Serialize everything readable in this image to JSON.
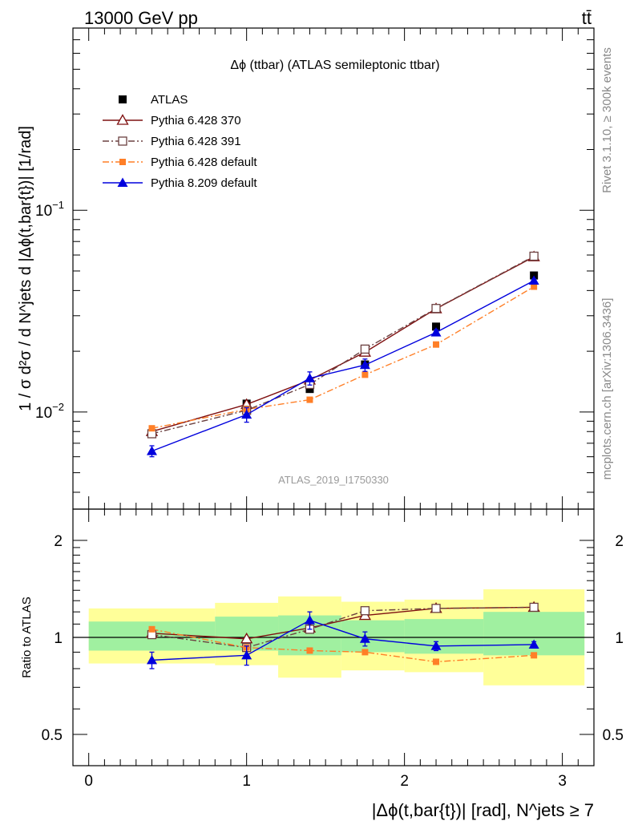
{
  "header": {
    "left": "13000 GeV pp",
    "right": "tt̄"
  },
  "side": {
    "rivet": "Rivet 3.1.10, ≥ 300k events",
    "mcplots": "mcplots.cern.ch [arXiv:1306.3436]"
  },
  "watermark": "ATLAS_2019_I1750330",
  "chart_data": [
    {
      "type": "scatter",
      "title": "Δϕ (ttbar) (ATLAS semileptonic ttbar)",
      "ylabel": "1 / σ d²σ / d N^jets d |Δϕ(t,bar{t})| [1/rad]",
      "yscale": "log",
      "ylim": [
        0.0033,
        0.8
      ],
      "xlim": [
        -0.1,
        3.2
      ],
      "y_ticklabels": [
        "10^-2",
        "10^-1"
      ],
      "legend_position": "top-left",
      "legend": [
        "ATLAS",
        "Pythia 6.428 370",
        "Pythia 6.428 391",
        "Pythia 6.428 default",
        "Pythia 8.209 default"
      ],
      "x": [
        0.4,
        1.0,
        1.4,
        1.75,
        2.2,
        2.82
      ],
      "series": [
        {
          "name": "ATLAS",
          "values": [
            0.0078,
            0.011,
            0.013,
            0.0172,
            0.0265,
            0.0475
          ],
          "errors": [
            0.0002,
            0.0003,
            0.0004,
            0.0006,
            0.0008,
            0.0012
          ],
          "color": "#000000",
          "marker": "square-filled",
          "line": "none"
        },
        {
          "name": "Pythia 6.428 370",
          "values": [
            0.008,
            0.0109,
            0.0144,
            0.0198,
            0.0325,
            0.0588
          ],
          "color": "#7f1010",
          "marker": "triangle-open",
          "line": "solid"
        },
        {
          "name": "Pythia 6.428 391",
          "values": [
            0.0078,
            0.0102,
            0.0137,
            0.0205,
            0.0326,
            0.0592
          ],
          "color": "#6b4040",
          "marker": "square-open",
          "line": "dashdot"
        },
        {
          "name": "Pythia 6.428 default",
          "values": [
            0.0083,
            0.0103,
            0.0115,
            0.0153,
            0.0216,
            0.0418
          ],
          "color": "#ff7f27",
          "marker": "square-filled-small",
          "line": "dashdot"
        },
        {
          "name": "Pythia 8.209 default",
          "values": [
            0.0064,
            0.0097,
            0.0147,
            0.0171,
            0.0248,
            0.0448
          ],
          "errors": [
            0.0004,
            0.0008,
            0.0011,
            0.0012,
            0.0008,
            0.0008
          ],
          "color": "#0000dd",
          "marker": "triangle-filled",
          "line": "solid"
        }
      ]
    },
    {
      "type": "scatter",
      "ylabel": "Ratio to ATLAS",
      "xlabel": "|Δϕ(t,bar{t})| [rad], N^jets ≥ 7",
      "yscale": "log",
      "ylim": [
        0.4,
        2.5
      ],
      "xlim": [
        -0.1,
        3.2
      ],
      "x_ticklabels": [
        "0",
        "1",
        "2",
        "3"
      ],
      "y_ticklabels": [
        "0.5",
        "1",
        "2"
      ],
      "bands": {
        "edges": [
          0.0,
          0.8,
          1.2,
          1.6,
          2.5,
          3.14
        ],
        "bins": [
          [
            0.0,
            0.8
          ],
          [
            0.8,
            1.2
          ],
          [
            1.2,
            1.6
          ],
          [
            1.6,
            2.0
          ],
          [
            2.0,
            2.5
          ],
          [
            2.5,
            3.14
          ]
        ],
        "inner": [
          [
            0.91,
            1.12
          ],
          [
            0.91,
            1.16
          ],
          [
            0.88,
            1.17
          ],
          [
            0.9,
            1.13
          ],
          [
            0.89,
            1.14
          ],
          [
            0.88,
            1.2
          ]
        ],
        "outer": [
          [
            0.83,
            1.23
          ],
          [
            0.82,
            1.28
          ],
          [
            0.75,
            1.34
          ],
          [
            0.79,
            1.29
          ],
          [
            0.78,
            1.31
          ],
          [
            0.71,
            1.41
          ]
        ],
        "inner_color": "#a0f0a0",
        "outer_color": "#ffff99"
      },
      "x": [
        0.4,
        1.0,
        1.4,
        1.75,
        2.2,
        2.82
      ],
      "series": [
        {
          "name": "Pythia 6.428 370",
          "values": [
            1.03,
            0.99,
            1.07,
            1.17,
            1.23,
            1.24
          ],
          "color": "#7f1010",
          "marker": "triangle-open",
          "line": "solid"
        },
        {
          "name": "Pythia 6.428 391",
          "values": [
            1.02,
            0.93,
            1.06,
            1.21,
            1.23,
            1.24
          ],
          "color": "#6b4040",
          "marker": "square-open",
          "line": "dashdot"
        },
        {
          "name": "Pythia 6.428 default",
          "values": [
            1.06,
            0.93,
            0.91,
            0.9,
            0.84,
            0.88
          ],
          "color": "#ff7f27",
          "marker": "square-filled-small",
          "line": "dashdot"
        },
        {
          "name": "Pythia 8.209 default",
          "values": [
            0.85,
            0.88,
            1.13,
            0.99,
            0.94,
            0.95
          ],
          "errors": [
            0.05,
            0.06,
            0.07,
            0.05,
            0.03,
            0.02
          ],
          "color": "#0000dd",
          "marker": "triangle-filled",
          "line": "solid"
        }
      ]
    }
  ]
}
